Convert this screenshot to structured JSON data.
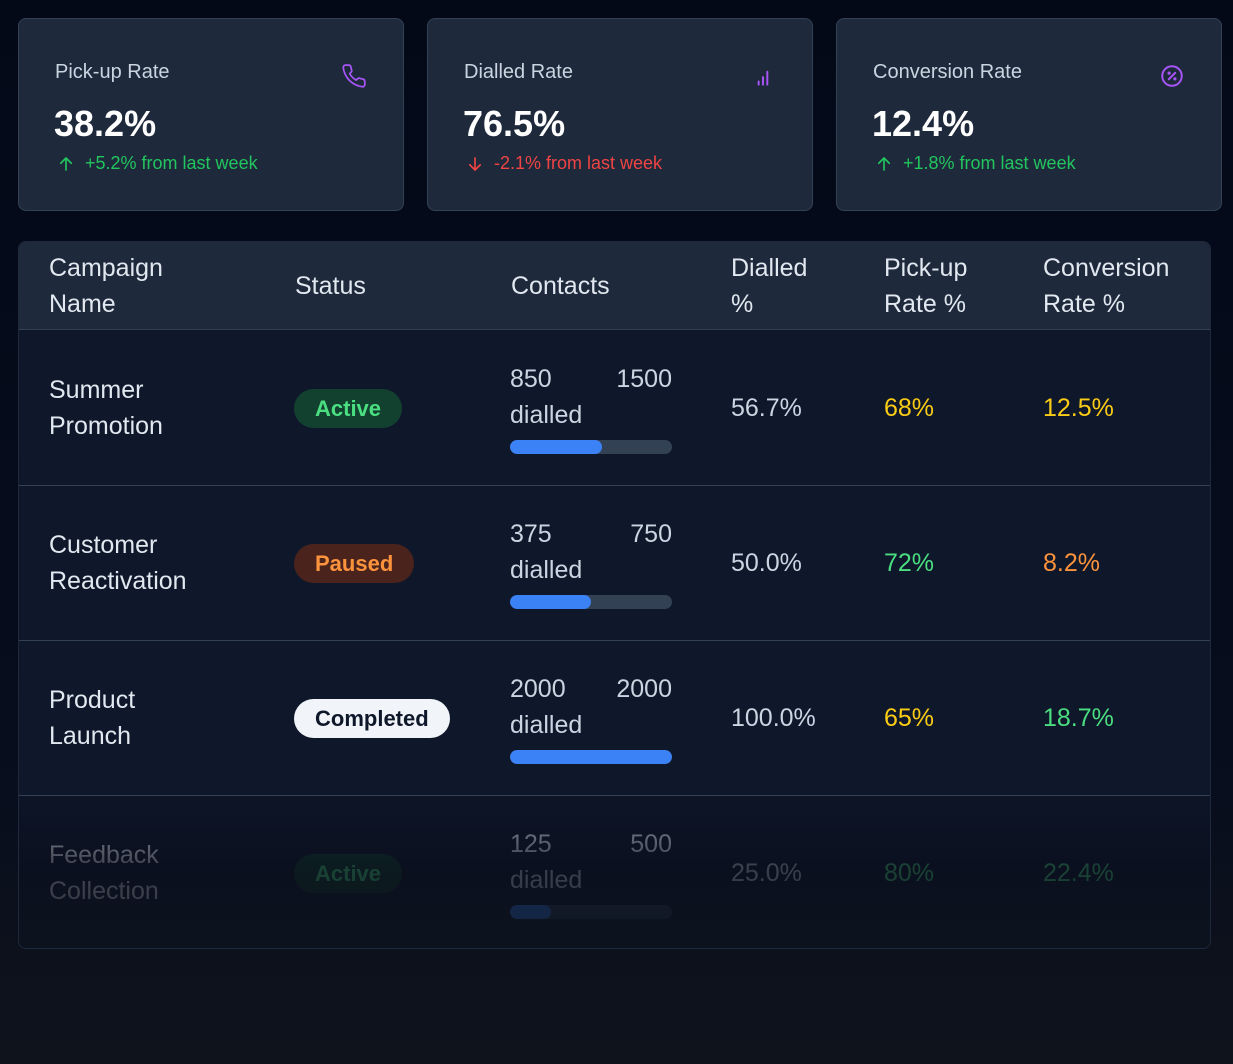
{
  "cards": [
    {
      "title": "Pick-up Rate",
      "value": "38.2%",
      "change": "+5.2% from last week",
      "trend": "up",
      "icon": "phone-icon"
    },
    {
      "title": "Dialled Rate",
      "value": "76.5%",
      "change": "-2.1% from last week",
      "trend": "down",
      "icon": "signal-bars-icon"
    },
    {
      "title": "Conversion Rate",
      "value": "12.4%",
      "change": "+1.8% from last week",
      "trend": "up",
      "icon": "percent-circle-icon"
    }
  ],
  "colors": {
    "accent_icon": "#a855f7",
    "up": "#22c55e",
    "down": "#ef4444",
    "progress": "#3b82f6"
  },
  "table": {
    "headers": {
      "campaign": [
        "Campaign",
        "Name"
      ],
      "status": "Status",
      "contacts": "Contacts",
      "dialled": [
        "Dialled",
        "%"
      ],
      "pickup": [
        "Pick-up",
        "Rate %"
      ],
      "conversion": [
        "Conversion",
        "Rate %"
      ]
    },
    "rows": [
      {
        "name": [
          "Summer",
          "Promotion"
        ],
        "status": "Active",
        "dialled": "850",
        "total": "1500",
        "dialled_word": "dialled",
        "progress": 0.567,
        "dialled_pct": "56.7%",
        "pickup": "68%",
        "pickup_color": "yellow",
        "conversion": "12.5%",
        "conversion_color": "yellow"
      },
      {
        "name": [
          "Customer",
          "Reactivation"
        ],
        "status": "Paused",
        "dialled": "375",
        "total": "750",
        "dialled_word": "dialled",
        "progress": 0.5,
        "dialled_pct": "50.0%",
        "pickup": "72%",
        "pickup_color": "green",
        "conversion": "8.2%",
        "conversion_color": "orange"
      },
      {
        "name": [
          "Product",
          "Launch"
        ],
        "status": "Completed",
        "dialled": "2000",
        "total": "2000",
        "dialled_word": "dialled",
        "progress": 1.0,
        "dialled_pct": "100.0%",
        "pickup": "65%",
        "pickup_color": "yellow",
        "conversion": "18.7%",
        "conversion_color": "green"
      },
      {
        "name": [
          "Feedback",
          "Collection"
        ],
        "status": "Active",
        "dialled": "125",
        "total": "500",
        "dialled_word": "dialled",
        "progress": 0.25,
        "dialled_pct": "25.0%",
        "pickup": "80%",
        "pickup_color": "green",
        "conversion": "22.4%",
        "conversion_color": "green"
      }
    ]
  }
}
